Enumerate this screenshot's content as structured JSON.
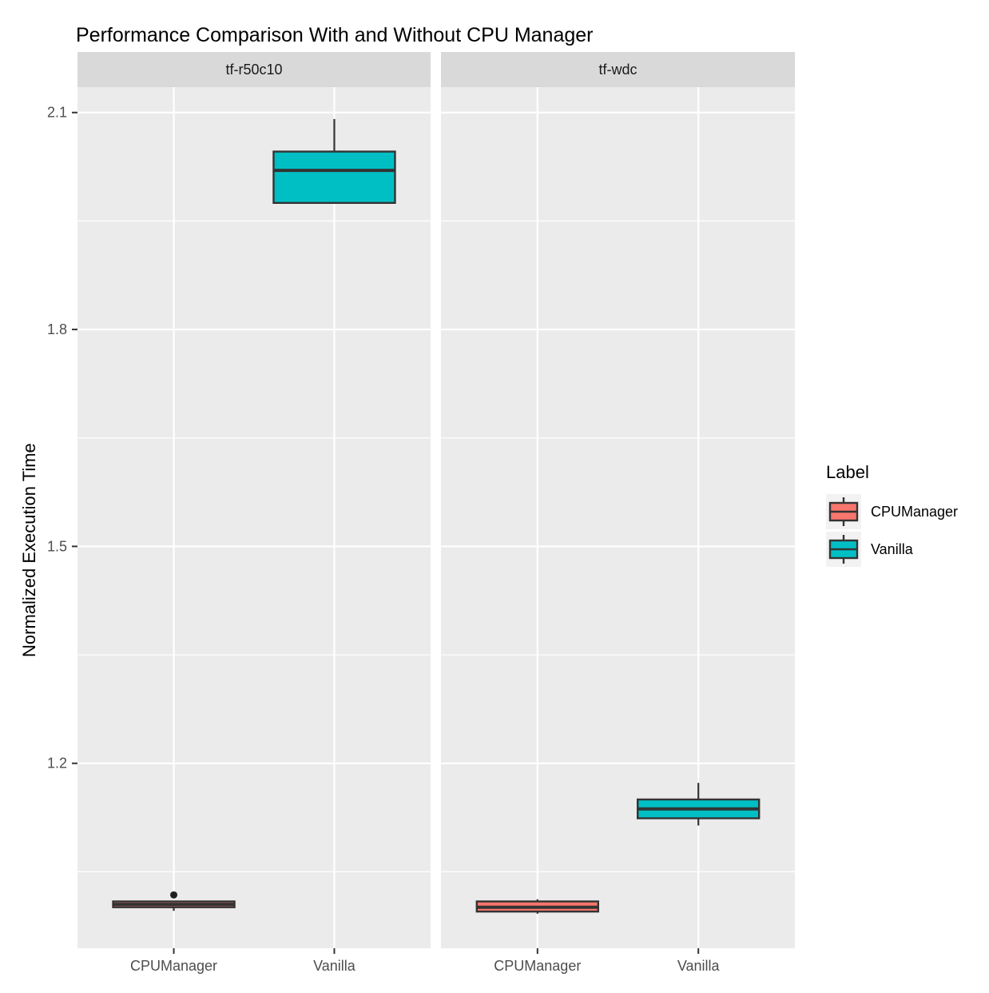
{
  "colors": {
    "panel_bg": "#EBEBEB",
    "strip_bg": "#D9D9D9",
    "grid": "#FFFFFF",
    "box_outline": "#333333",
    "tick_label": "#4D4D4D",
    "text": "#000000",
    "legend_key_bg": "#F2F2F2",
    "outlier": "#1F1F1F"
  },
  "legend": {
    "title": "Label",
    "position": "right",
    "items": [
      {
        "label": "CPUManager",
        "color": "#F8766D"
      },
      {
        "label": "Vanilla",
        "color": "#00BFC4"
      }
    ]
  },
  "chart_data": {
    "type": "boxplot",
    "title": "Performance Comparison With and Without CPU Manager",
    "xlabel": "",
    "ylabel": "Normalized Execution Time",
    "grid": "on",
    "y_ticks": [
      2.1,
      1.8,
      1.5,
      1.2
    ],
    "y_minor_ticks": [
      1.95,
      1.65,
      1.35,
      1.05
    ],
    "y_domain": [
      0.9443,
      2.1351
    ],
    "categories": [
      "CPUManager",
      "Vanilla"
    ],
    "series_colors": {
      "CPUManager": "#F8766D",
      "Vanilla": "#00BFC4"
    },
    "facets": [
      {
        "label": "tf-r50c10",
        "boxes": [
          {
            "category": "CPUManager",
            "min": 0.996,
            "q1": 1.001,
            "median": 1.005,
            "q3": 1.009,
            "max": 1.009,
            "outliers": [
              1.018
            ]
          },
          {
            "category": "Vanilla",
            "min": 1.975,
            "q1": 1.975,
            "median": 2.02,
            "q3": 2.046,
            "max": 2.091,
            "outliers": []
          }
        ]
      },
      {
        "label": "tf-wdc",
        "boxes": [
          {
            "category": "CPUManager",
            "min": 0.992,
            "q1": 0.995,
            "median": 1.001,
            "q3": 1.009,
            "max": 1.012,
            "outliers": []
          },
          {
            "category": "Vanilla",
            "min": 1.114,
            "q1": 1.124,
            "median": 1.137,
            "q3": 1.15,
            "max": 1.173,
            "outliers": []
          }
        ]
      }
    ]
  }
}
